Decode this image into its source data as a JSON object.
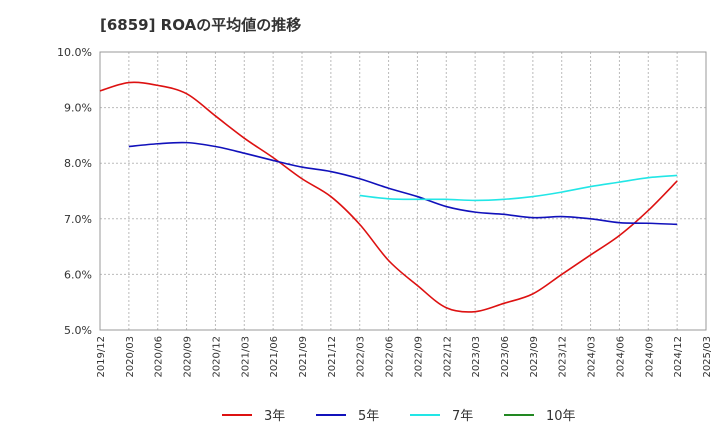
{
  "chart_data": {
    "type": "line",
    "title": "[6859]  ROAの平均値の推移",
    "xlabel": "",
    "ylabel": "",
    "ylim": [
      5.0,
      10.0
    ],
    "y_ticks": [
      "5.0%",
      "6.0%",
      "7.0%",
      "8.0%",
      "9.0%",
      "10.0%"
    ],
    "x_tick_labels": [
      "2019/12",
      "2020/03",
      "2020/06",
      "2020/09",
      "2020/12",
      "2021/03",
      "2021/06",
      "2021/09",
      "2021/12",
      "2022/03",
      "2022/06",
      "2022/09",
      "2022/12",
      "2023/03",
      "2023/06",
      "2023/09",
      "2023/12",
      "2024/03",
      "2024/06",
      "2024/09",
      "2024/12",
      "2025/03"
    ],
    "grid": true,
    "legend_position": "bottom",
    "series": [
      {
        "name": "3年",
        "color": "#dd1111",
        "values": [
          9.3,
          9.45,
          9.4,
          9.25,
          8.85,
          8.45,
          8.1,
          7.72,
          7.4,
          6.9,
          6.25,
          5.8,
          5.4,
          5.33,
          5.48,
          5.65,
          6.0,
          6.35,
          6.7,
          7.15,
          7.68,
          null
        ]
      },
      {
        "name": "5年",
        "color": "#1111bb",
        "values": [
          null,
          8.3,
          8.35,
          8.37,
          8.3,
          8.18,
          8.05,
          7.93,
          7.85,
          7.72,
          7.55,
          7.4,
          7.22,
          7.12,
          7.08,
          7.02,
          7.04,
          7.0,
          6.93,
          6.92,
          6.9,
          null
        ]
      },
      {
        "name": "7年",
        "color": "#22e6e6",
        "values": [
          null,
          null,
          null,
          null,
          null,
          null,
          null,
          null,
          null,
          7.42,
          7.36,
          7.35,
          7.35,
          7.33,
          7.35,
          7.4,
          7.48,
          7.58,
          7.66,
          7.74,
          7.78,
          null
        ]
      },
      {
        "name": "10年",
        "color": "#228822",
        "values": [
          null,
          null,
          null,
          null,
          null,
          null,
          null,
          null,
          null,
          null,
          null,
          null,
          null,
          null,
          null,
          null,
          null,
          null,
          null,
          null,
          null,
          null
        ]
      }
    ]
  }
}
